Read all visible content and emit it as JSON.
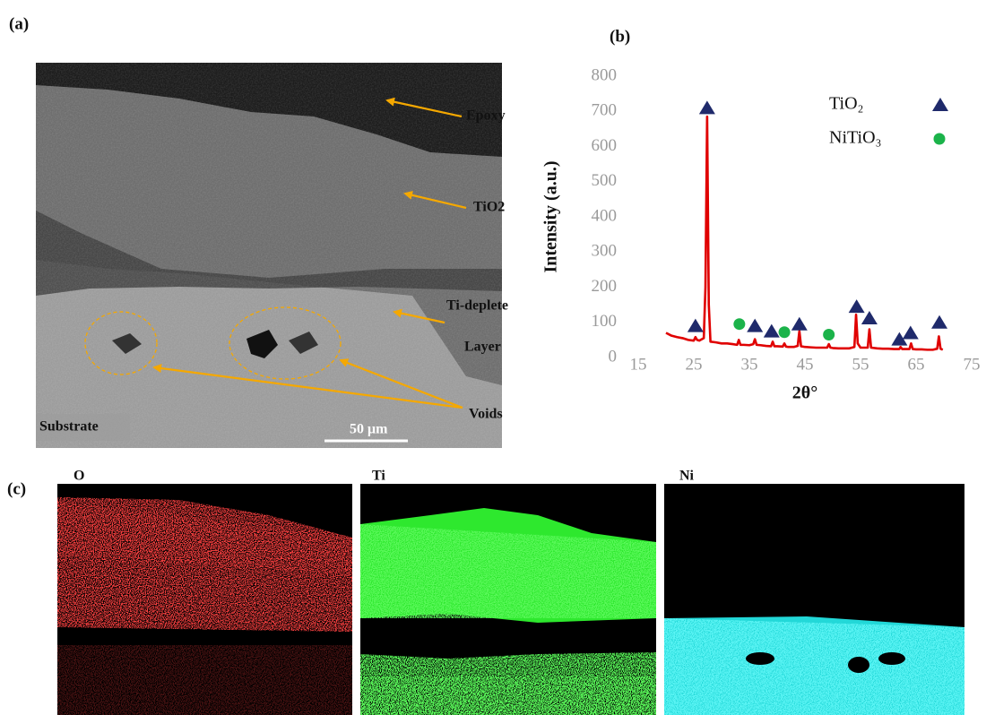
{
  "panel_labels": [
    "(a)",
    "(b)",
    "(c)"
  ],
  "sem_image": {
    "labels": [
      "Epoxy",
      "TiO2",
      "Ti-deplete",
      "Layer",
      "Voids",
      "Substrate"
    ],
    "scale_bar": "50 μm"
  },
  "eds_maps": {
    "titles": [
      "O",
      "Ti",
      "Ni"
    ]
  },
  "chart_data": {
    "type": "line",
    "x_label": "2θ°",
    "y_label": "Intensity (a.u.)",
    "xlim": [
      15,
      75
    ],
    "ylim": [
      0,
      800
    ],
    "xticks": [
      15,
      25,
      35,
      45,
      55,
      65,
      75
    ],
    "yticks": [
      0,
      100,
      200,
      300,
      400,
      500,
      600,
      700,
      800
    ],
    "grid": false,
    "series": [
      {
        "type": "line",
        "color": "#e00000",
        "x": [
          20,
          21,
          22,
          23,
          24,
          25,
          25.3,
          25.6,
          26,
          26.8,
          27.1,
          27.4,
          27.7,
          28,
          29,
          30,
          31,
          32,
          32.8,
          33.1,
          33.4,
          34,
          35,
          35.7,
          36,
          36.3,
          37,
          38,
          38.9,
          39.2,
          39.5,
          40,
          41,
          41.3,
          41.6,
          42,
          43,
          43.7,
          44,
          44.3,
          45,
          46,
          47,
          48,
          49,
          49.3,
          49.6,
          50,
          51,
          52,
          53,
          53.9,
          54.2,
          54.5,
          55,
          56.3,
          56.6,
          56.9,
          58,
          59,
          60,
          61,
          62,
          62.2,
          62.5,
          63,
          63.8,
          64.1,
          64.4,
          65,
          66,
          67,
          68,
          68.8,
          69.1,
          69.4,
          69.8
        ],
        "values": [
          70,
          62,
          58,
          55,
          50,
          48,
          58,
          50,
          48,
          55,
          200,
          685,
          150,
          45,
          43,
          40,
          40,
          38,
          36,
          50,
          36,
          36,
          35,
          38,
          52,
          36,
          35,
          33,
          32,
          45,
          32,
          32,
          31,
          40,
          31,
          30,
          30,
          33,
          75,
          32,
          30,
          29,
          28,
          28,
          28,
          38,
          28,
          27,
          26,
          26,
          26,
          30,
          122,
          40,
          28,
          28,
          80,
          28,
          26,
          25,
          25,
          24,
          24,
          30,
          24,
          24,
          24,
          40,
          24,
          23,
          23,
          22,
          22,
          25,
          60,
          25,
          22
        ]
      },
      {
        "type": "scatter",
        "name": "TiO₂",
        "marker": "triangle",
        "color": "#1f2a6b",
        "x": [
          25.3,
          27.4,
          36,
          39,
          44,
          54.3,
          56.6,
          62,
          64,
          69.2
        ],
        "values": [
          90,
          710,
          90,
          75,
          95,
          145,
          112,
          52,
          70,
          100
        ]
      },
      {
        "type": "scatter",
        "name": "NiTiO₃",
        "marker": "circle",
        "color": "#1bb34a",
        "x": [
          33.2,
          41.3,
          49.3
        ],
        "values": [
          95,
          72,
          65
        ]
      }
    ]
  }
}
